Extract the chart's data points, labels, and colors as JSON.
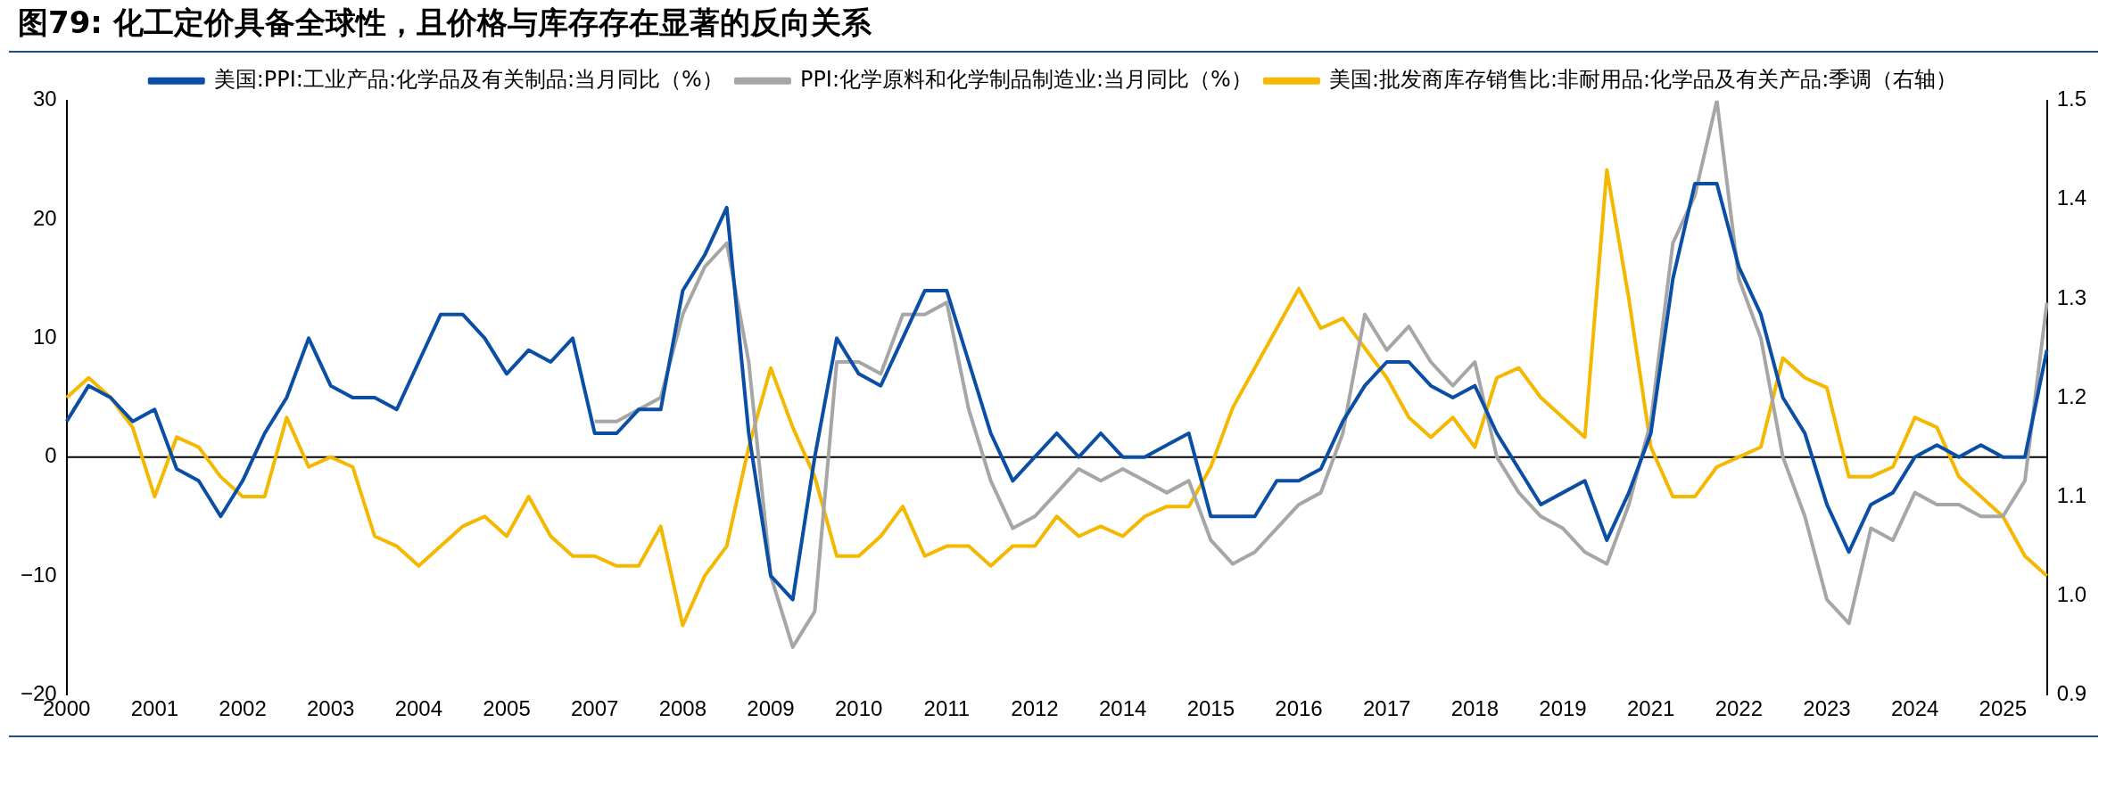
{
  "chart_data": {
    "type": "line",
    "title": "图79: 化工定价具备全球性，且价格与库存存在显著的反向关系",
    "categories": [
      "2000",
      null,
      null,
      null,
      "2001",
      null,
      null,
      null,
      "2002",
      null,
      null,
      null,
      "2003",
      null,
      null,
      null,
      "2004",
      null,
      null,
      null,
      "2005",
      null,
      null,
      null,
      "2007",
      null,
      null,
      null,
      "2008",
      null,
      null,
      null,
      "2009",
      null,
      null,
      null,
      "2010",
      null,
      null,
      null,
      "2011",
      null,
      null,
      null,
      "2012",
      null,
      null,
      null,
      "2014",
      null,
      null,
      null,
      "2015",
      null,
      null,
      null,
      "2016",
      null,
      null,
      null,
      "2017",
      null,
      null,
      null,
      "2018",
      null,
      null,
      null,
      "2019",
      null,
      null,
      null,
      "2021",
      null,
      null,
      null,
      "2022",
      null,
      null,
      null,
      "2023",
      null,
      null,
      null,
      "2024",
      null,
      null,
      null,
      "2025",
      null,
      null
    ],
    "series": [
      {
        "name": "美国:PPI:工业产品:化学品及有关制品:当月同比（%）",
        "color": "#0a4ea6",
        "values": [
          3,
          6,
          5,
          3,
          4,
          -1,
          -2,
          -5,
          -2,
          2,
          5,
          10,
          6,
          5,
          5,
          4,
          8,
          12,
          12,
          10,
          7,
          9,
          8,
          10,
          2,
          2,
          4,
          4,
          14,
          17,
          21,
          2,
          -10,
          -12,
          0,
          10,
          7,
          6,
          10,
          14,
          14,
          8,
          2,
          -2,
          0,
          2,
          0,
          2,
          0,
          0,
          1,
          2,
          -5,
          -5,
          -5,
          -2,
          -2,
          -1,
          3,
          6,
          8,
          8,
          6,
          5,
          6,
          2,
          -1,
          -4,
          -3,
          -2,
          -7,
          -3,
          2,
          15,
          23,
          23,
          16,
          12,
          5,
          2,
          -4,
          -8,
          -4,
          -3,
          0,
          1,
          0,
          1,
          0,
          0,
          9
        ]
      },
      {
        "name": "PPI:化学原料和化学制品制造业:当月同比（%）",
        "color": "#a6a6a6",
        "values": [
          null,
          null,
          null,
          null,
          null,
          null,
          null,
          null,
          null,
          null,
          null,
          null,
          null,
          null,
          null,
          null,
          null,
          null,
          null,
          null,
          null,
          null,
          null,
          null,
          3,
          3,
          4,
          5,
          12,
          16,
          18,
          8,
          -10,
          -16,
          -13,
          8,
          8,
          7,
          12,
          12,
          13,
          4,
          -2,
          -6,
          -5,
          -3,
          -1,
          -2,
          -1,
          -2,
          -3,
          -2,
          -7,
          -9,
          -8,
          -6,
          -4,
          -3,
          2,
          12,
          9,
          11,
          8,
          6,
          8,
          0,
          -3,
          -5,
          -6,
          -8,
          -9,
          -4,
          3,
          18,
          22,
          30,
          15,
          10,
          0,
          -5,
          -12,
          -14,
          -6,
          -7,
          -3,
          -4,
          -4,
          -5,
          -5,
          -2,
          13
        ]
      },
      {
        "name": "美国:批发商库存销售比:非耐用品:化学品及有关产品:季调（右轴）",
        "color": "#f5b800",
        "axis": "y2",
        "values": [
          1.2,
          1.22,
          1.2,
          1.17,
          1.1,
          1.16,
          1.15,
          1.12,
          1.1,
          1.1,
          1.18,
          1.13,
          1.14,
          1.13,
          1.06,
          1.05,
          1.03,
          1.05,
          1.07,
          1.08,
          1.06,
          1.1,
          1.06,
          1.04,
          1.04,
          1.03,
          1.03,
          1.07,
          0.97,
          1.02,
          1.05,
          1.15,
          1.23,
          1.17,
          1.12,
          1.04,
          1.04,
          1.06,
          1.09,
          1.04,
          1.05,
          1.05,
          1.03,
          1.05,
          1.05,
          1.08,
          1.06,
          1.07,
          1.06,
          1.08,
          1.09,
          1.09,
          1.13,
          1.19,
          1.23,
          1.27,
          1.31,
          1.27,
          1.28,
          1.25,
          1.22,
          1.18,
          1.16,
          1.18,
          1.15,
          1.22,
          1.23,
          1.2,
          1.18,
          1.16,
          1.43,
          1.3,
          1.15,
          1.1,
          1.1,
          1.13,
          1.14,
          1.15,
          1.24,
          1.22,
          1.21,
          1.12,
          1.12,
          1.13,
          1.18,
          1.17,
          1.12,
          1.1,
          1.08,
          1.04,
          1.02
        ]
      }
    ],
    "ylim": [
      -20,
      30
    ],
    "yticks": [
      -20,
      -10,
      0,
      10,
      20,
      30
    ],
    "y2lim": [
      0.9,
      1.5
    ],
    "y2ticks": [
      {
        "value": 0.9,
        "label": "0.9"
      },
      {
        "value": 1.0,
        "label": "1.0"
      },
      1.1,
      1.2,
      1.3,
      1.4,
      1.5
    ],
    "ref_lines": [
      {
        "axis": "y",
        "value": 0,
        "color": "#000000"
      }
    ],
    "grid": false,
    "legend": "top",
    "marker": "none",
    "line_style": "solid"
  }
}
